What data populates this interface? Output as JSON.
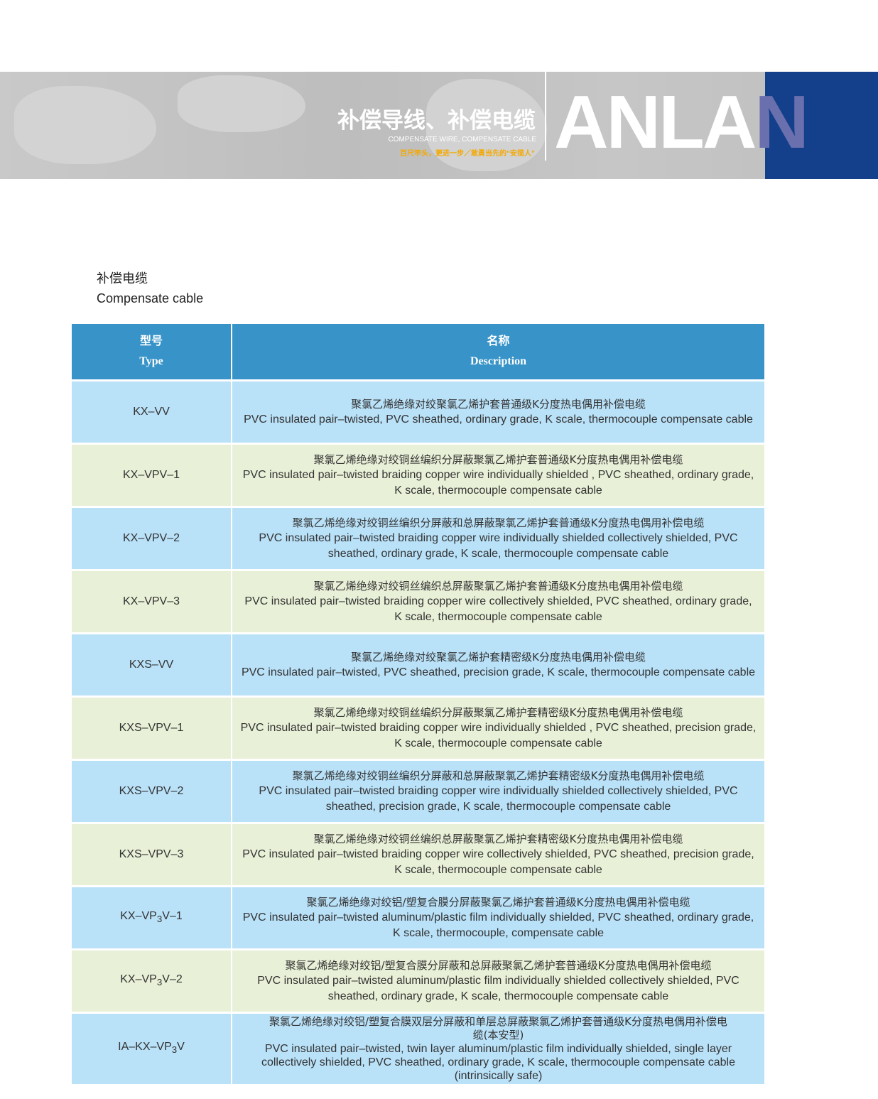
{
  "banner": {
    "title_cn": "补偿导线、补偿电缆",
    "title_en": "COMPENSATE WIRE, COMPENSATE CABLE",
    "slogan": "百尺竿头，更进一步／敢勇当先的“安揽人”",
    "logo_main": "ANLA",
    "logo_last": "N",
    "colors": {
      "logo_blue": "#143f8b",
      "logo_n": "#6a6fae",
      "slogan": "#f4a800"
    }
  },
  "section": {
    "title_cn": "补偿电缆",
    "title_en": "Compensate cable"
  },
  "table": {
    "header": {
      "type_cn": "型号",
      "type_en": "Type",
      "desc_cn": "名称",
      "desc_en": "Description"
    },
    "colors": {
      "header": "#3793c8",
      "row_blue": "#b9e1f8",
      "row_green": "#e8f0d7"
    },
    "rows": [
      {
        "type": [
          "KX–VV"
        ],
        "cn": "聚氯乙烯绝缘对绞聚氯乙烯护套普通级K分度热电偶用补偿电缆",
        "en": "PVC insulated pair–twisted, PVC sheathed, ordinary grade, K scale, thermocouple compensate cable"
      },
      {
        "type": [
          "KX–VPV–1"
        ],
        "cn": "聚氯乙烯绝缘对绞铜丝编织分屏蔽聚氯乙烯护套普通级K分度热电偶用补偿电缆",
        "en": "PVC insulated pair–twisted braiding copper wire individually shielded , PVC sheathed, ordinary grade, K scale, thermocouple compensate cable"
      },
      {
        "type": [
          "KX–VPV–2"
        ],
        "cn": "聚氯乙烯绝缘对绞铜丝编织分屏蔽和总屏蔽聚氯乙烯护套普通级K分度热电偶用补偿电缆",
        "en": "PVC insulated pair–twisted braiding copper wire individually shielded collectively shielded, PVC sheathed, ordinary grade, K scale, thermocouple compensate cable"
      },
      {
        "type": [
          "KX–VPV–3"
        ],
        "cn": "聚氯乙烯绝缘对绞铜丝编织总屏蔽聚氯乙烯护套普通级K分度热电偶用补偿电缆",
        "en": "PVC insulated pair–twisted braiding copper wire collectively shielded, PVC sheathed, ordinary grade, K scale, thermocouple compensate cable"
      },
      {
        "type": [
          "KXS–VV"
        ],
        "cn": "聚氯乙烯绝缘对绞聚氯乙烯护套精密级K分度热电偶用补偿电缆",
        "en": "PVC insulated pair–twisted, PVC sheathed, precision grade, K scale, thermocouple compensate cable"
      },
      {
        "type": [
          "KXS–VPV–1"
        ],
        "cn": "聚氯乙烯绝缘对绞铜丝编织分屏蔽聚氯乙烯护套精密级K分度热电偶用补偿电缆",
        "en": "PVC insulated pair–twisted braiding copper wire individually shielded , PVC sheathed, precision grade, K scale, thermocouple compensate cable"
      },
      {
        "type": [
          "KXS–VPV–2"
        ],
        "cn": "聚氯乙烯绝缘对绞铜丝编织分屏蔽和总屏蔽聚氯乙烯护套精密级K分度热电偶用补偿电缆",
        "en": "PVC insulated pair–twisted braiding copper wire individually shielded collectively shielded, PVC sheathed, precision grade, K scale, thermocouple compensate cable"
      },
      {
        "type": [
          "KXS–VPV–3"
        ],
        "cn": "聚氯乙烯绝缘对绞铜丝编织总屏蔽聚氯乙烯护套精密级K分度热电偶用补偿电缆",
        "en": "PVC insulated pair–twisted braiding copper wire collectively shielded, PVC sheathed, precision grade, K scale, thermocouple compensate cable"
      },
      {
        "type": [
          "KX–VP",
          "3",
          "V–1"
        ],
        "cn": "聚氯乙烯绝缘对绞铝/塑复合膜分屏蔽聚氯乙烯护套普通级K分度热电偶用补偿电缆",
        "en": "PVC insulated pair–twisted aluminum/plastic film individually shielded, PVC sheathed, ordinary grade, K scale, thermocouple, compensate cable"
      },
      {
        "type": [
          "KX–VP",
          "3",
          "V–2"
        ],
        "cn": "聚氯乙烯绝缘对绞铝/塑复合膜分屏蔽和总屏蔽聚氯乙烯护套普通级K分度热电偶用补偿电缆",
        "en": "PVC insulated pair–twisted aluminum/plastic film individually shielded collectively shielded, PVC sheathed, ordinary grade, K scale, thermocouple compensate cable"
      },
      {
        "type": [
          "IA–KX–VP",
          "3",
          "V"
        ],
        "cn": "聚氯乙烯绝缘对绞铝/塑复合膜双层分屏蔽和单层总屏蔽聚氯乙烯护套普通级K分度热电偶用补偿电缆(本安型)",
        "en": "PVC insulated pair–twisted, twin layer aluminum/plastic film individually shielded, single layer collectively shielded, PVC sheathed, ordinary grade, K scale, thermocouple compensate cable (intrinsically safe)"
      }
    ]
  }
}
